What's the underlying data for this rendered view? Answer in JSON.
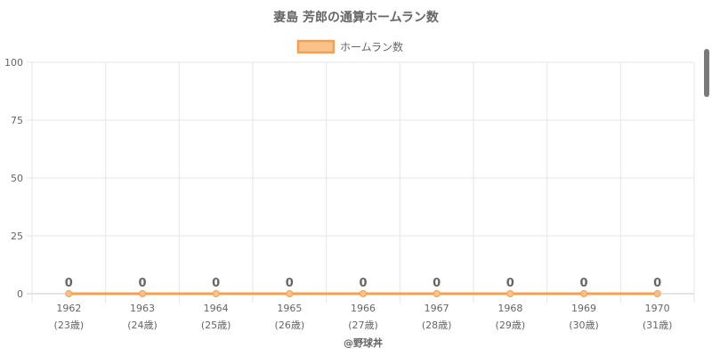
{
  "chart_data": {
    "type": "line",
    "title": "妻島 芳郎の通算ホームラン数",
    "x": [
      "1962",
      "1963",
      "1964",
      "1965",
      "1966",
      "1967",
      "1968",
      "1969",
      "1970"
    ],
    "x_sublabels": [
      "(23歳)",
      "(24歳)",
      "(25歳)",
      "(26歳)",
      "(27歳)",
      "(28歳)",
      "(29歳)",
      "(30歳)",
      "(31歳)"
    ],
    "series": [
      {
        "name": "ホームラン数",
        "values": [
          0,
          0,
          0,
          0,
          0,
          0,
          0,
          0,
          0
        ],
        "color": "#f5a04a",
        "fill": "#f9c28d"
      }
    ],
    "ylim": [
      0,
      100
    ],
    "yticks": [
      "0",
      "25",
      "50",
      "75",
      "100"
    ],
    "grid": true,
    "legend_position": "top-center",
    "data_labels": true
  },
  "credit": "@野球丼"
}
